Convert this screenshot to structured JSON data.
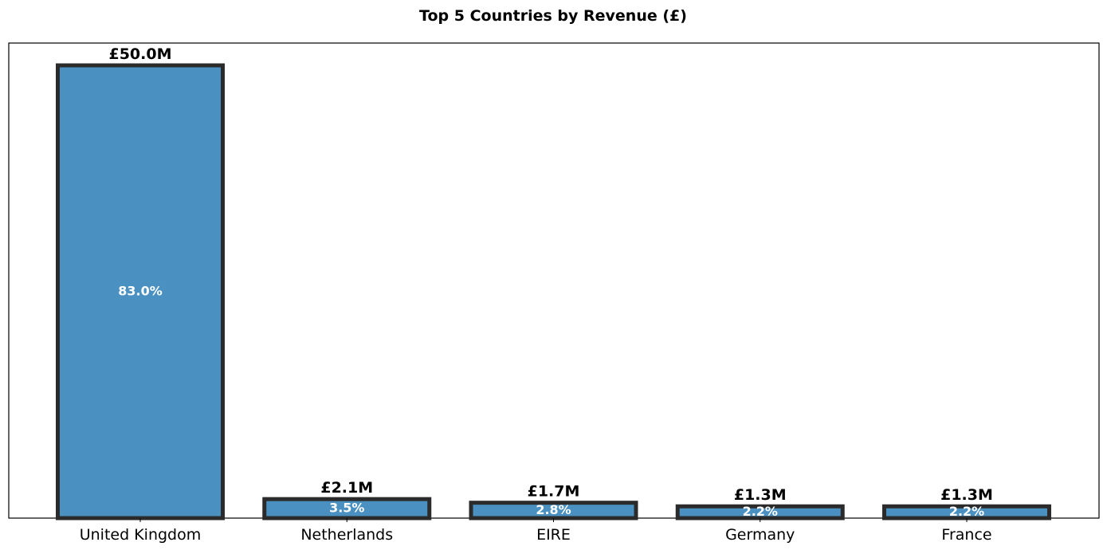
{
  "chart_data": {
    "type": "bar",
    "title": "Top 5 Countries by Revenue (£)",
    "xlabel": "",
    "ylabel": "",
    "categories": [
      "United Kingdom",
      "Netherlands",
      "EIRE",
      "Germany",
      "France"
    ],
    "values": [
      50.0,
      2.1,
      1.7,
      1.3,
      1.3
    ],
    "value_labels": [
      "£50.0M",
      "£2.1M",
      "£1.7M",
      "£1.3M",
      "£1.3M"
    ],
    "percent_labels": [
      "83.0%",
      "3.5%",
      "2.8%",
      "2.2%",
      "2.2%"
    ],
    "ylim": [
      0,
      50.0
    ],
    "grid": false,
    "legend": "none",
    "colors": {
      "bar_fill": "#4a91c2",
      "bar_edge": "#2b2b2b",
      "value_text": "#000000",
      "percent_text": "#ffffff"
    }
  }
}
